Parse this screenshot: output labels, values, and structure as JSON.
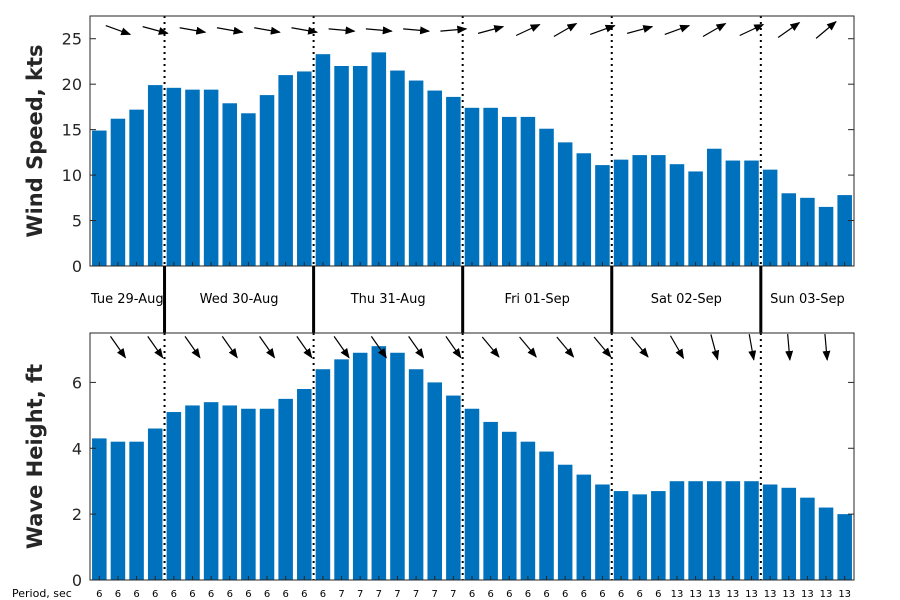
{
  "chart_data": [
    {
      "type": "bar",
      "ylabel": "Wind Speed, kts",
      "ylim": [
        0,
        27.5
      ],
      "yticks": [
        0,
        5,
        10,
        15,
        20,
        25
      ],
      "color": "#0072BD",
      "values": [
        14.9,
        16.2,
        17.2,
        19.9,
        19.6,
        19.4,
        19.4,
        17.9,
        16.8,
        18.8,
        21.0,
        21.4,
        23.3,
        22.0,
        22.0,
        23.5,
        21.5,
        20.4,
        19.3,
        18.6,
        17.4,
        17.4,
        16.4,
        16.4,
        15.1,
        13.6,
        12.4,
        11.1,
        11.7,
        12.2,
        12.2,
        11.2,
        10.4,
        12.9,
        11.6,
        11.6,
        10.6,
        8.0,
        7.5,
        6.5,
        7.8
      ],
      "direction_arrows": "wind-direction-arrows"
    },
    {
      "type": "bar",
      "ylabel": "Wave Height, ft",
      "ylim": [
        0,
        7.5
      ],
      "yticks": [
        0,
        2,
        4,
        6
      ],
      "color": "#0072BD",
      "values": [
        4.3,
        4.2,
        4.2,
        4.6,
        5.1,
        5.3,
        5.4,
        5.3,
        5.2,
        5.2,
        5.5,
        5.8,
        6.4,
        6.7,
        6.9,
        7.1,
        6.9,
        6.4,
        6.0,
        5.6,
        5.2,
        4.8,
        4.5,
        4.2,
        3.9,
        3.5,
        3.2,
        2.9,
        2.7,
        2.6,
        2.7,
        3.0,
        3.0,
        3.0,
        3.0,
        3.0,
        2.9,
        2.8,
        2.5,
        2.2,
        2.0
      ],
      "direction_arrows": "wave-direction-arrows"
    }
  ],
  "days": [
    "Tue 29-Aug",
    "Wed 30-Aug",
    "Thu 31-Aug",
    "Fri 01-Sep",
    "Sat 02-Sep",
    "Sun 03-Sep"
  ],
  "period_label": "Period, sec",
  "periods": [
    "6",
    "6",
    "6",
    "6",
    "6",
    "6",
    "6",
    "6",
    "6",
    "6",
    "6",
    "6",
    "6",
    "7",
    "7",
    "7",
    "7",
    "7",
    "7",
    "7",
    "6",
    "6",
    "6",
    "6",
    "6",
    "6",
    "6",
    "6",
    "6",
    "6",
    "6",
    "13",
    "13",
    "13",
    "13",
    "13",
    "13",
    "13",
    "13",
    "13",
    "13"
  ],
  "wind_dir_deg": [
    300,
    290,
    285,
    285,
    280,
    280,
    280,
    280,
    280,
    280,
    280,
    280,
    275,
    275,
    275,
    275,
    275,
    275,
    270,
    265,
    260,
    255,
    250,
    245,
    240,
    240,
    245,
    250,
    255,
    255,
    255,
    250,
    245,
    240,
    240,
    245,
    240,
    235,
    230,
    230,
    225
  ],
  "wave_dir_deg": [
    330,
    325,
    325,
    325,
    325,
    325,
    325,
    325,
    325,
    325,
    325,
    325,
    325,
    325,
    325,
    325,
    325,
    325,
    325,
    325,
    320,
    320,
    320,
    320,
    320,
    320,
    320,
    320,
    320,
    320,
    320,
    330,
    340,
    345,
    345,
    350,
    350,
    355,
    355,
    355,
    355
  ]
}
